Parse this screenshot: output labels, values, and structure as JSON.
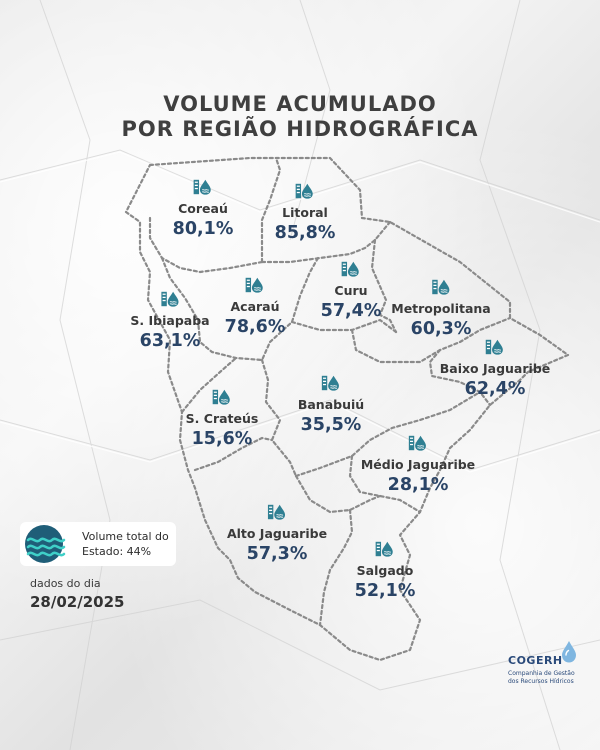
{
  "title_line1": "VOLUME ACUMULADO",
  "title_line2": "POR REGIÃO HIDROGRÁFICA",
  "regions": [
    {
      "name": "Coreaú",
      "value": "80,1%",
      "icon": "reservoir-drop-icon"
    },
    {
      "name": "Litoral",
      "value": "85,8%",
      "icon": "reservoir-drop-icon"
    },
    {
      "name": "Curu",
      "value": "57,4%",
      "icon": "reservoir-drop-icon"
    },
    {
      "name": "Metropolitana",
      "value": "60,3%",
      "icon": "reservoir-drop-icon"
    },
    {
      "name": "Acaraú",
      "value": "78,6%",
      "icon": "reservoir-drop-icon"
    },
    {
      "name": "S. Ibiapaba",
      "value": "63,1%",
      "icon": "reservoir-drop-icon"
    },
    {
      "name": "Baixo Jaguaribe",
      "value": "62,4%",
      "icon": "reservoir-drop-icon"
    },
    {
      "name": "Banabuiú",
      "value": "35,5%",
      "icon": "reservoir-drop-icon"
    },
    {
      "name": "S. Crateús",
      "value": "15,6%",
      "icon": "reservoir-drop-icon"
    },
    {
      "name": "Médio Jaguaribe",
      "value": "28,1%",
      "icon": "reservoir-drop-icon"
    },
    {
      "name": "Alto Jaguaribe",
      "value": "57,3%",
      "icon": "reservoir-drop-icon"
    },
    {
      "name": "Salgado",
      "value": "52,1%",
      "icon": "reservoir-drop-icon"
    }
  ],
  "legend": {
    "text": "Volume total do Estado: 44%",
    "icon": "water-waves-icon",
    "color": "#1f5e78"
  },
  "date": {
    "label": "dados do dia",
    "value": "28/02/2025"
  },
  "logo": {
    "brand": "COGERH",
    "subtitle_line1": "Companhia de Gestão",
    "subtitle_line2": "dos Recursos Hídricos",
    "icon": "water-drop-icon"
  },
  "colors": {
    "title": "#3f3f3f",
    "value": "#2a4466",
    "icon_teal": "#2f7f92",
    "border": "#8a8a8a"
  }
}
